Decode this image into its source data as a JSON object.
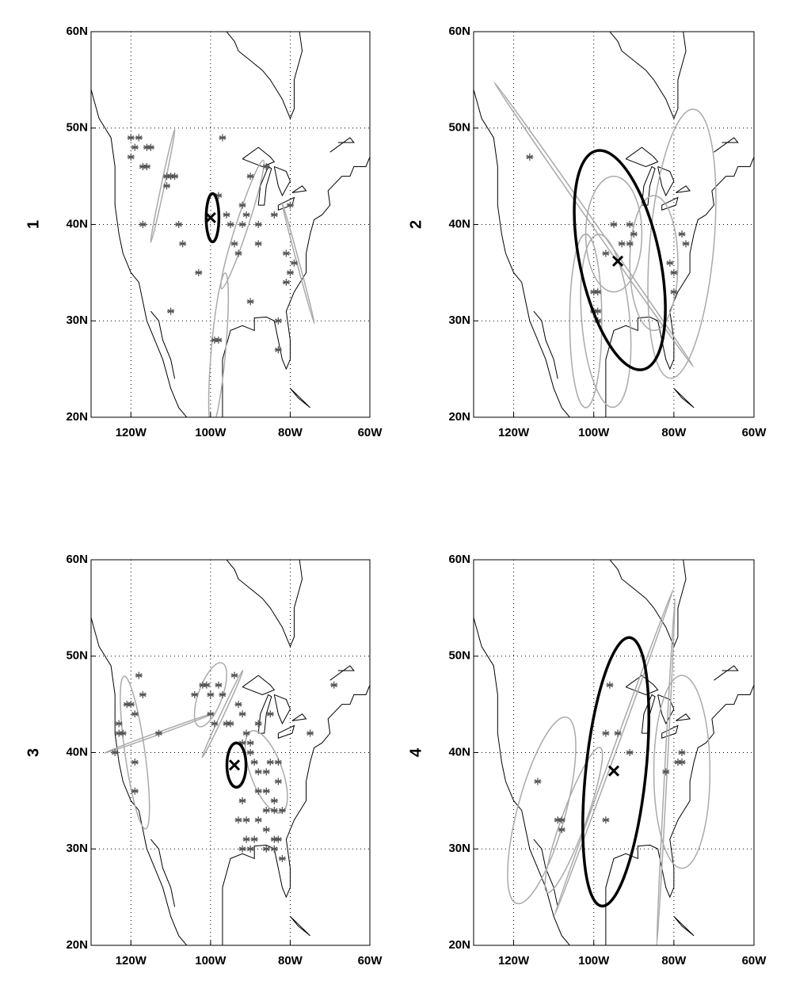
{
  "chart_data": [
    {
      "type": "scatter",
      "label": "1",
      "xlim": [
        -130,
        -60
      ],
      "ylim": [
        20,
        60
      ],
      "xticks": [
        {
          "value": -120,
          "label": "120W"
        },
        {
          "value": -100,
          "label": "100W"
        },
        {
          "value": -80,
          "label": "80W"
        },
        {
          "value": -60,
          "label": "60W"
        }
      ],
      "yticks": [
        {
          "value": 20,
          "label": "20N"
        },
        {
          "value": 30,
          "label": "30N"
        },
        {
          "value": 40,
          "label": "40N"
        },
        {
          "value": 50,
          "label": "50N"
        },
        {
          "value": 60,
          "label": "60N"
        }
      ],
      "grid": true,
      "points": {
        "color": "#555555",
        "x": [
          -120,
          -119,
          -118,
          -120,
          -117,
          -116,
          -115,
          -116,
          -111,
          -110,
          -109,
          -111,
          -108,
          -107,
          -117,
          -110,
          -103,
          -97,
          -98,
          -96,
          -95,
          -94,
          -93,
          -92,
          -92,
          -91,
          -90,
          -88,
          -88,
          -86,
          -84,
          -90,
          -80,
          -81,
          -80,
          -81,
          -79,
          -83,
          -83,
          -98,
          -99
        ],
        "y": [
          49,
          48,
          49,
          47,
          46,
          48,
          48,
          46,
          45,
          45,
          45,
          44,
          40,
          38,
          40,
          31,
          35,
          49,
          43,
          41,
          40,
          38,
          37,
          42,
          40,
          41,
          45,
          40,
          38,
          46,
          41,
          32,
          42,
          37,
          35,
          34,
          36,
          30,
          27,
          28,
          28
        ]
      },
      "mean": {
        "x": -100,
        "y": 40.7,
        "color": "#000000"
      },
      "mean_ellipse": {
        "x": -99.5,
        "y": 40.7,
        "rx": 1.6,
        "ry": 2.5,
        "angle": 0,
        "color": "#000000"
      },
      "member_color": "#aaaaaa",
      "member_ellipses": [
        {
          "x": -98,
          "y": 27,
          "rx": 1.8,
          "ry": 8,
          "angle": 5
        },
        {
          "x": -92,
          "y": 40,
          "rx": 1.5,
          "ry": 7,
          "angle": 18
        },
        {
          "x": -112,
          "y": 44,
          "rx": 0.4,
          "ry": 6,
          "angle": 12
        },
        {
          "x": -78,
          "y": 36,
          "rx": 0.3,
          "ry": 6.5,
          "angle": -15
        }
      ]
    },
    {
      "type": "scatter",
      "label": "2",
      "xlim": [
        -130,
        -60
      ],
      "ylim": [
        20,
        60
      ],
      "xticks": [
        {
          "value": -120,
          "label": "120W"
        },
        {
          "value": -100,
          "label": "100W"
        },
        {
          "value": -80,
          "label": "80W"
        },
        {
          "value": -60,
          "label": "60W"
        }
      ],
      "yticks": [
        {
          "value": 20,
          "label": "20N"
        },
        {
          "value": 30,
          "label": "30N"
        },
        {
          "value": 40,
          "label": "40N"
        },
        {
          "value": 50,
          "label": "50N"
        },
        {
          "value": 60,
          "label": "60N"
        }
      ],
      "grid": true,
      "points": {
        "color": "#555555",
        "x": [
          -116,
          -95,
          -91,
          -90,
          -93,
          -91,
          -97,
          -99,
          -100,
          -100,
          -99,
          -99,
          -78,
          -77,
          -81,
          -80,
          -80
        ],
        "y": [
          47,
          40,
          40,
          39,
          38,
          38,
          37,
          33,
          33,
          31,
          31,
          30,
          39,
          38,
          36,
          35,
          33
        ]
      },
      "mean": {
        "x": -94,
        "y": 36.2,
        "color": "#000000"
      },
      "mean_ellipse": {
        "x": -93.5,
        "y": 36.3,
        "rx": 10,
        "ry": 11.6,
        "angle": -12,
        "color": "#000000"
      },
      "member_color": "#aaaaaa",
      "member_ellipses": [
        {
          "x": -78,
          "y": 38,
          "rx": 8,
          "ry": 14,
          "angle": 5
        },
        {
          "x": -97,
          "y": 30,
          "rx": 6,
          "ry": 9,
          "angle": -5
        },
        {
          "x": -95,
          "y": 39,
          "rx": 7,
          "ry": 6,
          "angle": 0
        },
        {
          "x": -85,
          "y": 36,
          "rx": 6,
          "ry": 7,
          "angle": 0
        },
        {
          "x": -102,
          "y": 30,
          "rx": 4,
          "ry": 9,
          "angle": 0
        },
        {
          "x": -100,
          "y": 40,
          "rx": 0.5,
          "ry": 18,
          "angle": -35
        }
      ]
    },
    {
      "type": "scatter",
      "label": "3",
      "xlim": [
        -130,
        -60
      ],
      "ylim": [
        20,
        60
      ],
      "xticks": [
        {
          "value": -120,
          "label": "120W"
        },
        {
          "value": -100,
          "label": "100W"
        },
        {
          "value": -80,
          "label": "80W"
        },
        {
          "value": -60,
          "label": "60W"
        }
      ],
      "yticks": [
        {
          "value": 20,
          "label": "20N"
        },
        {
          "value": 30,
          "label": "30N"
        },
        {
          "value": 40,
          "label": "40N"
        },
        {
          "value": 50,
          "label": "50N"
        },
        {
          "value": 60,
          "label": "60N"
        }
      ],
      "grid": true,
      "points": {
        "color": "#555555",
        "x": [
          -124,
          -123,
          -122,
          -121,
          -120,
          -119,
          -118,
          -117,
          -113,
          -119,
          -119,
          -123,
          -104,
          -102,
          -101,
          -100,
          -98,
          -97,
          -100,
          -99,
          -96,
          -95,
          -94,
          -93,
          -92,
          -91,
          -90,
          -92,
          -90,
          -89,
          -88,
          -86,
          -85,
          -88,
          -86,
          -83,
          -84,
          -92,
          -93,
          -91,
          -88,
          -86,
          -84,
          -82,
          -91,
          -89,
          -86,
          -84,
          -83,
          -92,
          -90,
          -86,
          -84,
          -82,
          -83,
          -75,
          -69,
          -88,
          -85
        ],
        "y": [
          40,
          43,
          42,
          45,
          45,
          44,
          48,
          46,
          42,
          39,
          36,
          42,
          46,
          47,
          47,
          46,
          47,
          46,
          44,
          43,
          43,
          43,
          48,
          45,
          44,
          42,
          41,
          41,
          40,
          39,
          38,
          38,
          39,
          36,
          36,
          37,
          35,
          35,
          33,
          33,
          33,
          34,
          34,
          34,
          31,
          31,
          32,
          31,
          31,
          30,
          30,
          30,
          30,
          29,
          39,
          42,
          47,
          43,
          44
        ]
      },
      "mean": {
        "x": -94,
        "y": 38.7,
        "color": "#000000"
      },
      "mean_ellipse": {
        "x": -93.5,
        "y": 38.7,
        "rx": 2.4,
        "ry": 2.3,
        "angle": 0,
        "color": "#000000"
      },
      "member_color": "#aaaaaa",
      "member_ellipses": [
        {
          "x": -119,
          "y": 40,
          "rx": 2.5,
          "ry": 8,
          "angle": -8
        },
        {
          "x": -100,
          "y": 46,
          "rx": 3,
          "ry": 3.5,
          "angle": 20
        },
        {
          "x": -86,
          "y": 38,
          "rx": 4,
          "ry": 4.5,
          "angle": -20
        },
        {
          "x": -113,
          "y": 42,
          "rx": 0.3,
          "ry": 6,
          "angle": 70
        },
        {
          "x": -97,
          "y": 44,
          "rx": 0.4,
          "ry": 5,
          "angle": 25
        }
      ]
    },
    {
      "type": "scatter",
      "label": "4",
      "xlim": [
        -130,
        -60
      ],
      "ylim": [
        20,
        60
      ],
      "xticks": [
        {
          "value": -120,
          "label": "120W"
        },
        {
          "value": -100,
          "label": "100W"
        },
        {
          "value": -80,
          "label": "80W"
        },
        {
          "value": -60,
          "label": "60W"
        }
      ],
      "yticks": [
        {
          "value": 20,
          "label": "20N"
        },
        {
          "value": 30,
          "label": "30N"
        },
        {
          "value": 40,
          "label": "40N"
        },
        {
          "value": 50,
          "label": "50N"
        },
        {
          "value": 60,
          "label": "60N"
        }
      ],
      "grid": true,
      "points": {
        "color": "#555555",
        "x": [
          -114,
          -109,
          -108,
          -108,
          -97,
          -94,
          -96,
          -91,
          -97,
          -82,
          -79,
          -78,
          -78
        ],
        "y": [
          37,
          33,
          33,
          32,
          42,
          42,
          47,
          40,
          33,
          38,
          39,
          39,
          40
        ]
      },
      "mean": {
        "x": -95,
        "y": 38.1,
        "color": "#000000"
      },
      "mean_ellipse": {
        "x": -94.5,
        "y": 38,
        "rx": 7.5,
        "ry": 14,
        "angle": 6,
        "color": "#000000"
      },
      "member_color": "#aaaaaa",
      "member_ellipses": [
        {
          "x": -113,
          "y": 34,
          "rx": 6,
          "ry": 10,
          "angle": 15
        },
        {
          "x": -78,
          "y": 38,
          "rx": 7,
          "ry": 10,
          "angle": 0
        },
        {
          "x": -105,
          "y": 33,
          "rx": 3,
          "ry": 8,
          "angle": 20
        },
        {
          "x": -95,
          "y": 40,
          "rx": 0.4,
          "ry": 18,
          "angle": 20
        },
        {
          "x": -82,
          "y": 38,
          "rx": 0.3,
          "ry": 18,
          "angle": 3
        }
      ]
    }
  ]
}
